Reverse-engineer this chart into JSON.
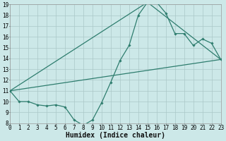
{
  "xlabel": "Humidex (Indice chaleur)",
  "xlim": [
    0,
    23
  ],
  "ylim": [
    8,
    19
  ],
  "yticks": [
    8,
    9,
    10,
    11,
    12,
    13,
    14,
    15,
    16,
    17,
    18,
    19
  ],
  "xticks": [
    0,
    1,
    2,
    3,
    4,
    5,
    6,
    7,
    8,
    9,
    10,
    11,
    12,
    13,
    14,
    15,
    16,
    17,
    18,
    19,
    20,
    21,
    22,
    23
  ],
  "background_color": "#cce8e8",
  "grid_color": "#aac8c8",
  "line_color": "#2e7d6e",
  "line1_x": [
    0,
    1,
    2,
    3,
    4,
    5,
    6,
    7,
    8,
    9,
    10,
    11,
    12,
    13,
    14,
    15,
    16,
    17,
    18,
    19,
    20,
    21,
    22,
    23
  ],
  "line1_y": [
    11,
    10,
    10,
    9.7,
    9.6,
    9.7,
    9.5,
    8.3,
    7.8,
    8.3,
    9.9,
    11.8,
    13.8,
    15.2,
    18.0,
    19.2,
    19.2,
    18.2,
    16.3,
    16.3,
    15.2,
    15.8,
    15.4,
    13.9
  ],
  "line2_x": [
    0,
    23
  ],
  "line2_y": [
    11,
    13.9
  ],
  "line3_x": [
    0,
    15,
    23
  ],
  "line3_y": [
    11,
    19.2,
    13.9
  ],
  "tick_fontsize": 5.5,
  "xlabel_fontsize": 7.0
}
